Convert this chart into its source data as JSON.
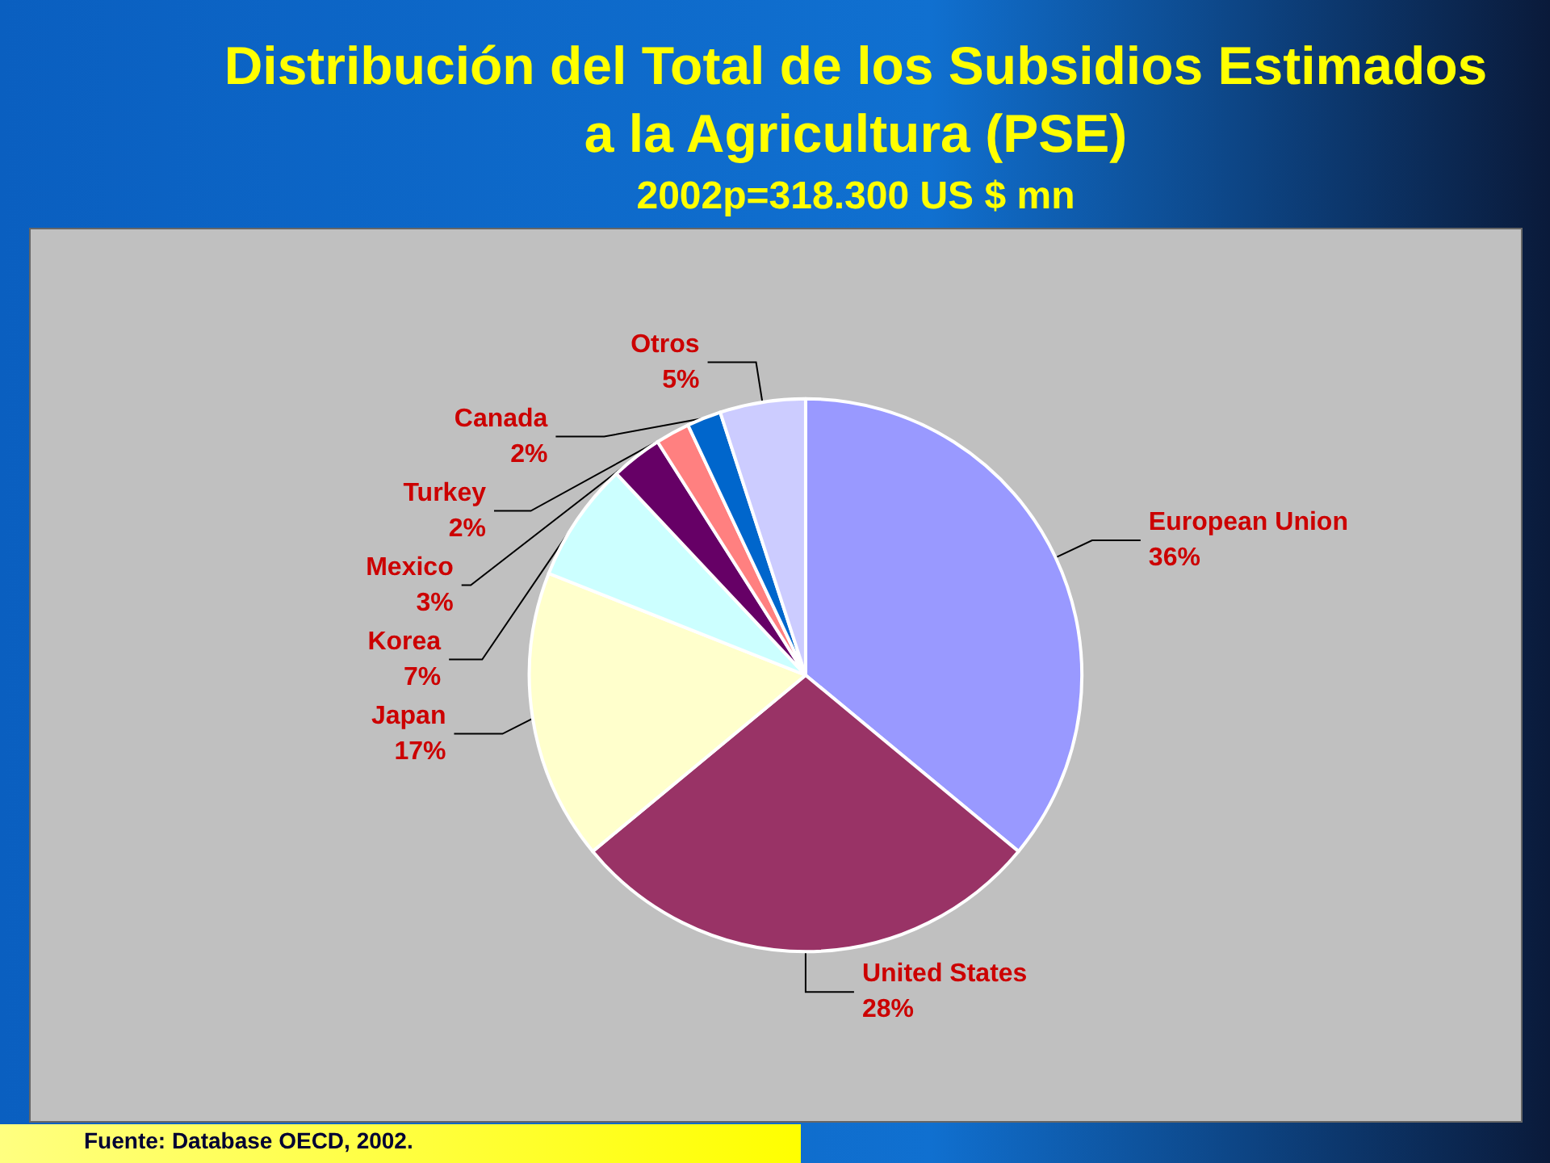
{
  "chart_data": {
    "type": "pie",
    "title": "Distribución del Total de los Subsidios Estimados a la Agricultura  (PSE)",
    "subtitle": "2002p=318.300 US $ mn",
    "categories": [
      "European Union",
      "United States",
      "Japan",
      "Korea",
      "Mexico",
      "Turkey",
      "Canada",
      "Otros"
    ],
    "values": [
      36,
      28,
      17,
      7,
      3,
      2,
      2,
      5
    ],
    "value_labels": [
      "36%",
      "28%",
      "17%",
      "7%",
      "3%",
      "2%",
      "2%",
      "5%"
    ],
    "colors": [
      "#9999ff",
      "#993366",
      "#ffffcc",
      "#ccffff",
      "#660066",
      "#ff8080",
      "#0066cc",
      "#ccccff"
    ],
    "annotations": [
      "Fuente: Database OECD, 2002."
    ]
  }
}
